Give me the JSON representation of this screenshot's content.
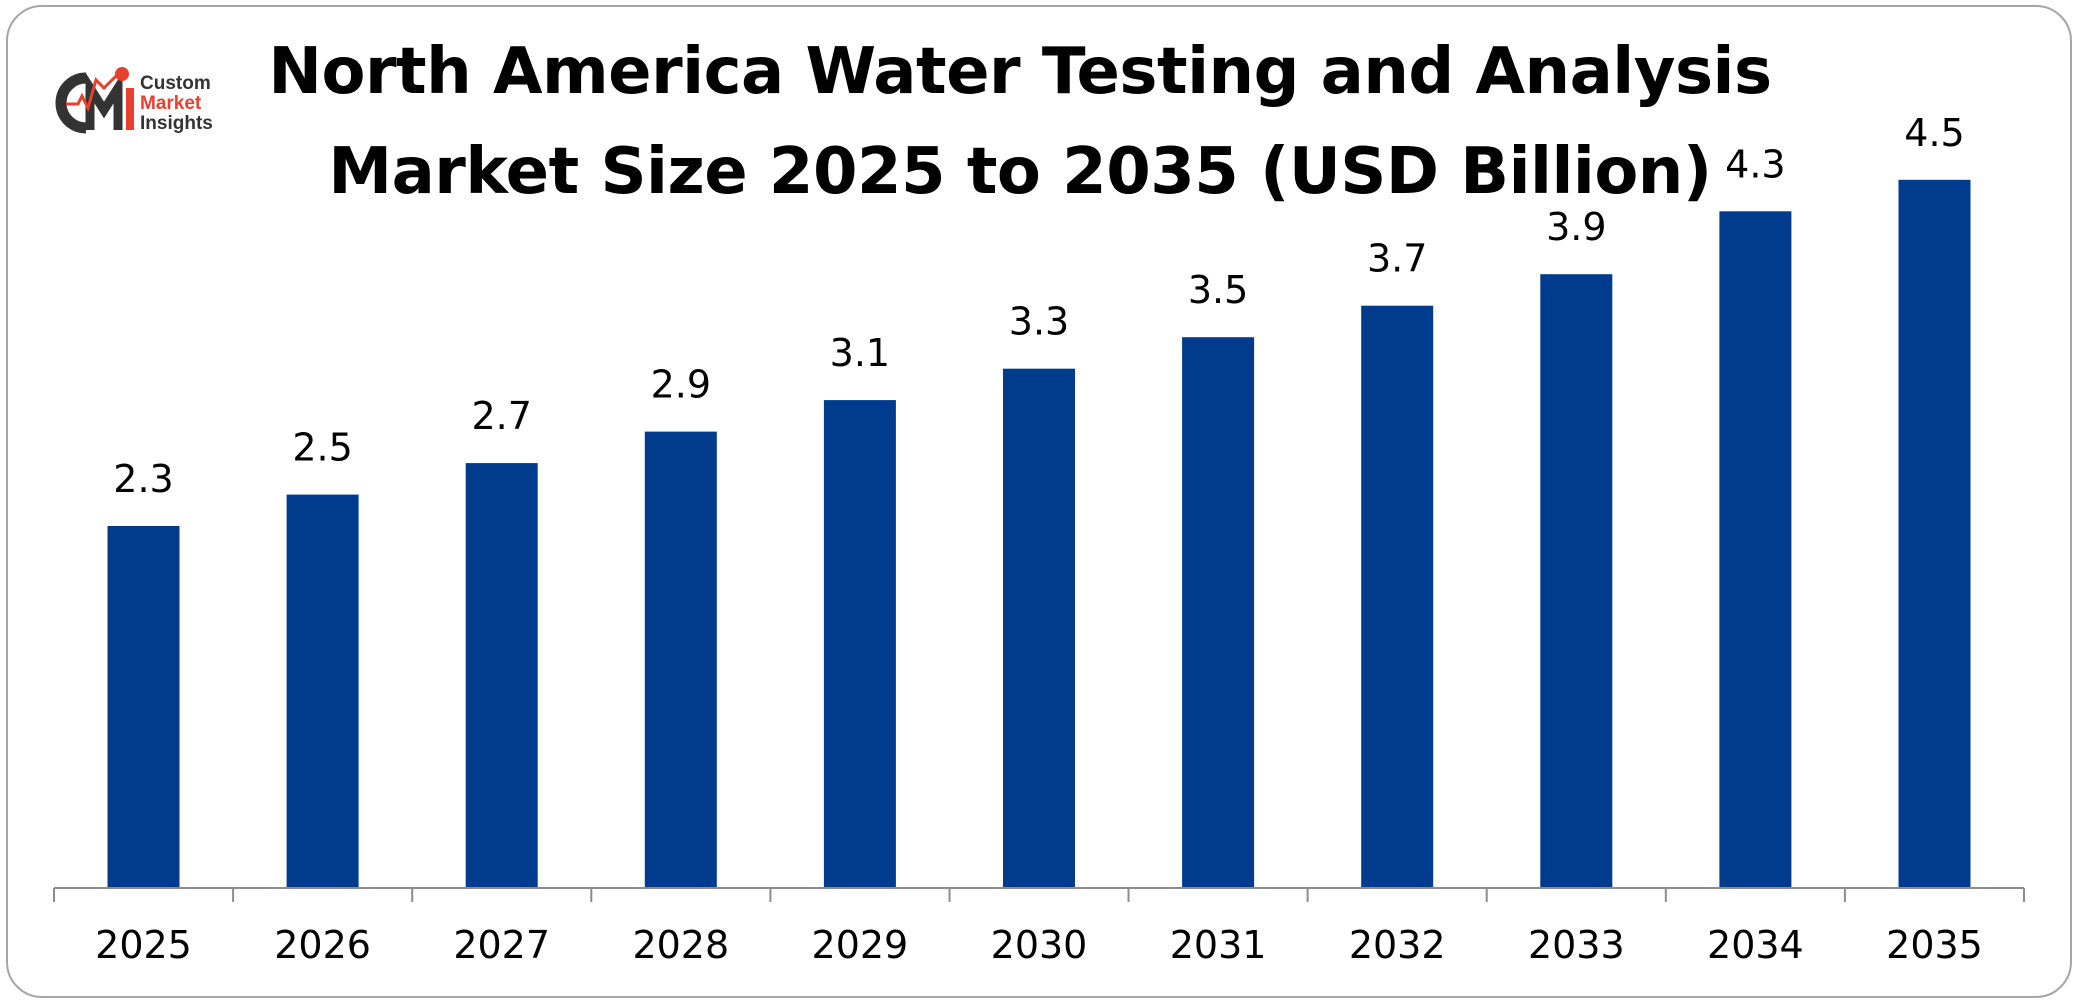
{
  "logo": {
    "mark": "CMI",
    "line1": "Custom",
    "line2": "Market",
    "line3": "Insights"
  },
  "colors": {
    "bar": "#003b8e",
    "axis": "#8c8c8c",
    "logo_accent": "#e8402e",
    "logo_dark": "#333333"
  },
  "chart_data": {
    "type": "bar",
    "title": "North America Water Testing and Analysis Market Size 2025 to 2035 (USD Billion)",
    "title_lines": [
      "North America Water Testing and Analysis",
      "Market Size 2025 to 2035 (USD Billion)"
    ],
    "categories": [
      "2025",
      "2026",
      "2027",
      "2028",
      "2029",
      "2030",
      "2031",
      "2032",
      "2033",
      "2034",
      "2035"
    ],
    "values": [
      2.3,
      2.5,
      2.7,
      2.9,
      3.1,
      3.3,
      3.5,
      3.7,
      3.9,
      4.3,
      4.5
    ],
    "data_labels": [
      "2.3",
      "2.5",
      "2.7",
      "2.9",
      "3.1",
      "3.3",
      "3.5",
      "3.7",
      "3.9",
      "4.3",
      "4.5"
    ],
    "xlabel": "",
    "ylabel": "",
    "ylim": [
      0,
      4.9
    ],
    "grid": false,
    "legend": "none"
  }
}
